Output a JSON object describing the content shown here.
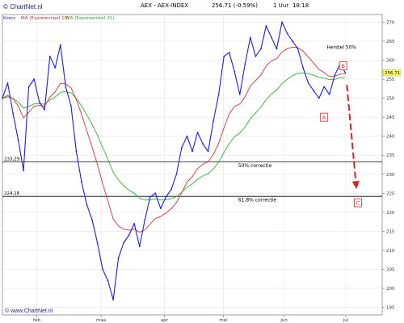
{
  "header": {
    "logo_text": "© ChartNet.nl",
    "title": "AEX - AEX-INDEX",
    "last_value": "256.71 (-0.59%)",
    "period": "1 Uur",
    "time": "18:18"
  },
  "legend": {
    "label_main": "Koers",
    "label_ma1": "MA (Exponentieel 10)",
    "label_ma2": "MA (Exponentieel 21)"
  },
  "footer": {
    "watermark": "© www.ChartNet.nl"
  },
  "colors": {
    "price": "#1a1aff",
    "ema10": "#e03030",
    "ema21": "#30b030",
    "annotation": "#e02020",
    "lastvalue_bg": "#ffff66"
  },
  "chart_data": {
    "type": "line",
    "title": "AEX - AEX-INDEX",
    "xlim": [
      0,
      72
    ],
    "ylim": [
      193,
      272
    ],
    "y_ticks": [
      195,
      200,
      205,
      210,
      215,
      220,
      225,
      230,
      235,
      240,
      245,
      250,
      255,
      260,
      265,
      270
    ],
    "x_tick_labels": [
      {
        "x": 6.5,
        "label": "feb"
      },
      {
        "x": 18.7,
        "label": "maa"
      },
      {
        "x": 30.7,
        "label": "apr"
      },
      {
        "x": 41.9,
        "label": "mei"
      },
      {
        "x": 53.4,
        "label": "jun"
      },
      {
        "x": 65.1,
        "label": "jul"
      }
    ],
    "series": [
      {
        "name": "Koers",
        "x": [
          0,
          1,
          2,
          3,
          4,
          5,
          6,
          7,
          8,
          9,
          10,
          11,
          12,
          13,
          14,
          15,
          16,
          17,
          18,
          19,
          20,
          21,
          22,
          23,
          24,
          25,
          26,
          27,
          28,
          29,
          30,
          31,
          32,
          33,
          34,
          35,
          36,
          37,
          38,
          39,
          40,
          41,
          42,
          43,
          44,
          45,
          46,
          47,
          48,
          49,
          50,
          51,
          52,
          53,
          54,
          55,
          56,
          57,
          58,
          59,
          60,
          61,
          62,
          63,
          64,
          65
        ],
        "values": [
          250,
          254,
          246,
          239,
          231,
          253,
          255,
          249,
          247,
          261,
          258,
          264,
          253,
          248,
          236,
          228,
          222,
          218,
          212,
          205,
          202,
          197,
          208,
          212,
          214,
          217,
          211,
          218,
          224,
          225,
          221,
          224,
          226,
          230,
          237,
          240,
          236,
          241,
          238,
          236,
          244,
          251,
          261,
          262,
          257,
          251,
          259,
          266,
          261,
          263,
          269,
          266,
          263,
          270,
          267,
          265,
          263,
          258,
          254,
          252,
          250,
          253,
          251,
          256,
          259,
          256.71
        ]
      }
    ],
    "horizontal_lines": [
      {
        "value": 233.29,
        "label": "233,29",
        "annotation": "50% correctie"
      },
      {
        "value": 224.18,
        "label": "224,18",
        "annotation": "61,8% correctie"
      }
    ],
    "annotations": [
      {
        "text": "Herstel 50%",
        "x": 64.3,
        "y": 263
      },
      {
        "text": "B",
        "x": 64.6,
        "y": 258.5
      },
      {
        "text": "A",
        "x": 61.0,
        "y": 245.0
      },
      {
        "text": "C",
        "x": 67.4,
        "y": 222.5
      }
    ],
    "forecast_arrow": {
      "from": {
        "x": 65.3,
        "y": 253.5
      },
      "to": {
        "x": 67.1,
        "y": 226.5
      }
    },
    "last_value_label": "256.71",
    "grid": true
  }
}
